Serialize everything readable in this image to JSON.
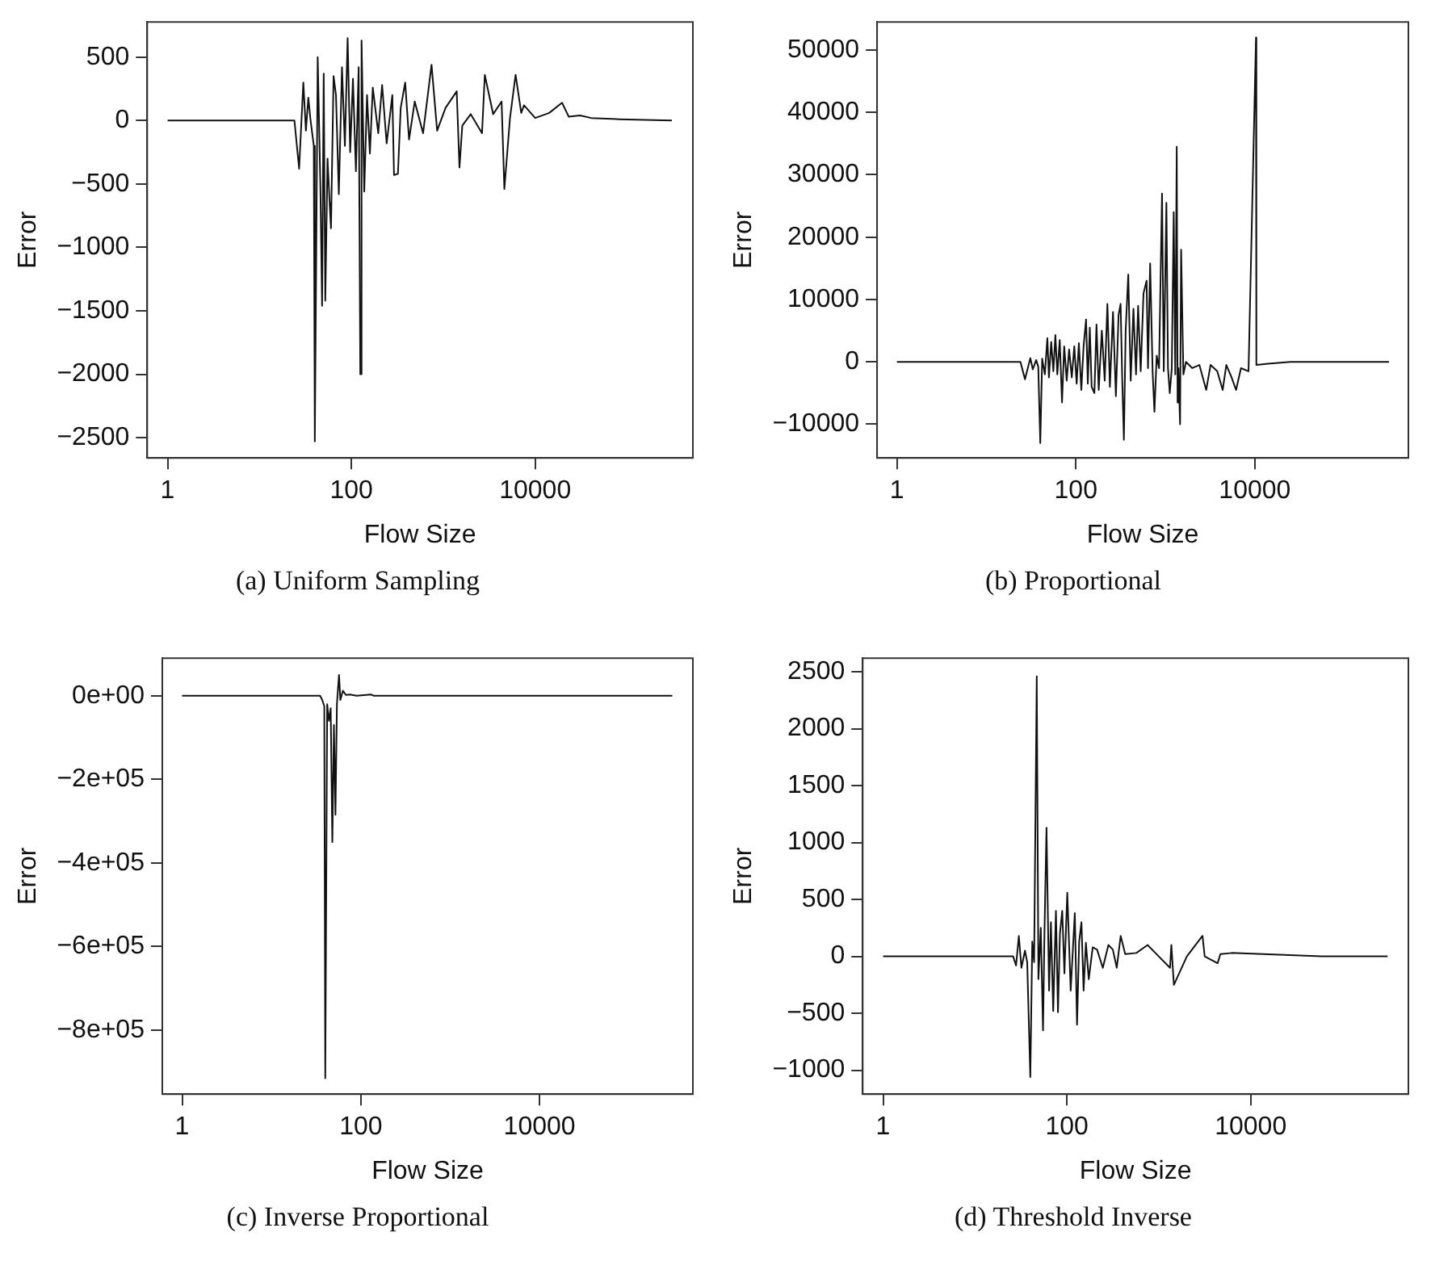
{
  "chart_data": [
    {
      "type": "line",
      "title": "(a) Uniform Sampling",
      "xlabel": "Flow Size",
      "ylabel": "Error",
      "log": "x",
      "xlim": [
        0.6,
        520000
      ],
      "xticks": [
        1,
        100,
        10000
      ],
      "ylim": [
        -2660,
        777
      ],
      "yticks": [
        {
          "value": -2500,
          "label": "−2500"
        },
        {
          "value": -2000,
          "label": "−2000"
        },
        {
          "value": -1500,
          "label": "−1500"
        },
        {
          "value": -1000,
          "label": "−1000"
        },
        {
          "value": -500,
          "label": "−500"
        },
        0,
        500
      ],
      "x": [
        1,
        24,
        27,
        30,
        32,
        34,
        36,
        39,
        40,
        43,
        46,
        48,
        50,
        52,
        55,
        58,
        60,
        64,
        68,
        73,
        79,
        85,
        91,
        97,
        104,
        112,
        120,
        125,
        129,
        138,
        148,
        159,
        171,
        196,
        216,
        242,
        279,
        291,
        321,
        344,
        385,
        424,
        489,
        603,
        745,
        857,
        1058,
        1400,
        1500,
        1610,
        1990,
        2640,
        2830,
        3490,
        4310,
        4620,
        5320,
        6120,
        7050,
        7560,
        10000,
        14200,
        19600,
        23200,
        30800,
        40700,
        82000,
        307000
      ],
      "series": [
        {
          "color": "#111111",
          "values": [
            0,
            0,
            -380,
            300,
            -80,
            180,
            0,
            -200,
            -2530,
            500,
            -520,
            -1460,
            370,
            -1420,
            -300,
            -650,
            -850,
            350,
            200,
            -580,
            420,
            -200,
            650,
            -250,
            330,
            -400,
            420,
            -2000,
            630,
            -560,
            200,
            -260,
            260,
            -100,
            280,
            -180,
            200,
            -430,
            -420,
            100,
            300,
            -150,
            150,
            -100,
            440,
            -80,
            100,
            230,
            -370,
            -40,
            50,
            -100,
            360,
            50,
            150,
            -540,
            20,
            360,
            60,
            120,
            20,
            60,
            140,
            30,
            40,
            20,
            10,
            0
          ]
        }
      ]
    },
    {
      "type": "line",
      "title": "(b) Proportional",
      "xlabel": "Flow Size",
      "ylabel": "Error",
      "log": "x",
      "xlim": [
        0.6,
        520000
      ],
      "xticks": [
        1,
        100,
        10000
      ],
      "ylim": [
        -15400,
        54500
      ],
      "yticks": [
        {
          "value": -10000,
          "label": "−10000"
        },
        0,
        10000,
        20000,
        30000,
        40000,
        50000
      ],
      "x": [
        1,
        24,
        27,
        29,
        31,
        33,
        36,
        38,
        40,
        42,
        45,
        48,
        50,
        53,
        56,
        59,
        62,
        66,
        70,
        74,
        79,
        84,
        90,
        96,
        102,
        108,
        115,
        122,
        130,
        136,
        143,
        150,
        161,
        170,
        180,
        195,
        210,
        225,
        240,
        260,
        280,
        300,
        316,
        330,
        344,
        360,
        385,
        410,
        440,
        470,
        496,
        530,
        570,
        617,
        640,
        676,
        720,
        755,
        800,
        850,
        918,
        960,
        1027,
        1070,
        1120,
        1180,
        1240,
        1290,
        1340,
        1370,
        1400,
        1460,
        1500,
        1590,
        1700,
        2000,
        2400,
        2860,
        3200,
        3800,
        4370,
        4800,
        5500,
        6170,
        7000,
        8500,
        10300,
        10400,
        14000,
        25000,
        316000
      ],
      "series": [
        {
          "color": "#111111",
          "values": [
            0,
            0,
            -2800,
            -1000,
            600,
            -1200,
            300,
            -800,
            -13000,
            500,
            -2000,
            3800,
            -2500,
            3200,
            -1500,
            4300,
            -2000,
            3500,
            -6500,
            2500,
            -3000,
            2000,
            -2500,
            2500,
            -3500,
            3000,
            -4500,
            2500,
            6800,
            -3500,
            5500,
            -4000,
            -5000,
            6000,
            -4500,
            5000,
            -3000,
            9300,
            -4000,
            8000,
            -5500,
            7500,
            9300,
            -3000,
            -12500,
            5000,
            14000,
            -3000,
            8500,
            -2000,
            9000,
            -1500,
            11000,
            13000,
            -1000,
            15800,
            -1500,
            -8000,
            1000,
            -1000,
            27000,
            -1500,
            25500,
            -1000,
            -5000,
            -1000,
            24000,
            -2000,
            34500,
            -6500,
            -1000,
            -10000,
            18000,
            -2000,
            0,
            -1000,
            -500,
            -4500,
            -500,
            -1500,
            -4500,
            -500,
            -2500,
            -4500,
            -1000,
            -1500,
            52000,
            -500,
            -300,
            0,
            0
          ]
        }
      ]
    },
    {
      "type": "line",
      "title": "(c) Inverse Proportional",
      "xlabel": "Flow Size",
      "ylabel": "Error",
      "log": "x",
      "xlim": [
        0.6,
        520000
      ],
      "xticks": [
        1,
        100,
        10000
      ],
      "ylim": [
        -953000,
        90000
      ],
      "yticks": [
        {
          "value": -800000,
          "label": "−8e+05"
        },
        {
          "value": -600000,
          "label": "−6e+05"
        },
        {
          "value": -400000,
          "label": "−4e+05"
        },
        {
          "value": -200000,
          "label": "−2e+05"
        },
        {
          "value": 0,
          "label": "0e+00"
        }
      ],
      "x": [
        1,
        35,
        37,
        39,
        40,
        42,
        44,
        46,
        48,
        50,
        52,
        54,
        57,
        59,
        63,
        68,
        75,
        90,
        130,
        140,
        306000
      ],
      "series": [
        {
          "color": "#111111",
          "values": [
            0,
            0,
            -10000,
            -25000,
            -915000,
            -20000,
            -60000,
            -30000,
            -350000,
            -70000,
            -285000,
            -20000,
            50000,
            -10000,
            12000,
            2000,
            3000,
            0,
            3000,
            0,
            0
          ]
        }
      ]
    },
    {
      "type": "line",
      "title": "(d) Threshold Inverse",
      "xlabel": "Flow Size",
      "ylabel": "Error",
      "log": "x",
      "xlim": [
        0.6,
        520000
      ],
      "xticks": [
        1,
        100,
        10000
      ],
      "ylim": [
        -1210,
        2620
      ],
      "yticks": [
        {
          "value": -1000,
          "label": "−1000"
        },
        {
          "value": -500,
          "label": "−500"
        },
        0,
        500,
        1000,
        1500,
        2000,
        2500
      ],
      "x": [
        1,
        26,
        28,
        30,
        32,
        35,
        37,
        40,
        42,
        44,
        47,
        49,
        52,
        55,
        57,
        60,
        64,
        67,
        71,
        76,
        80,
        84,
        89,
        94,
        101,
        110,
        122,
        129,
        136,
        144,
        152,
        161,
        173,
        191,
        213,
        246,
        283,
        316,
        349,
        385,
        431,
        570,
        755,
        1000,
        1325,
        1370,
        1460,
        2020,
        2990,
        3160,
        4370,
        4680,
        6210,
        58600,
        309000
      ],
      "series": [
        {
          "color": "#111111",
          "values": [
            0,
            0,
            -80,
            180,
            -100,
            50,
            -50,
            -1060,
            130,
            -50,
            2460,
            -200,
            250,
            -650,
            200,
            1130,
            -300,
            300,
            -480,
            400,
            -490,
            200,
            400,
            -150,
            560,
            -300,
            380,
            -600,
            130,
            300,
            -300,
            120,
            -200,
            80,
            60,
            -100,
            100,
            60,
            -100,
            180,
            20,
            30,
            100,
            0,
            -100,
            100,
            -250,
            0,
            180,
            0,
            -60,
            20,
            30,
            0,
            0
          ]
        }
      ]
    }
  ]
}
